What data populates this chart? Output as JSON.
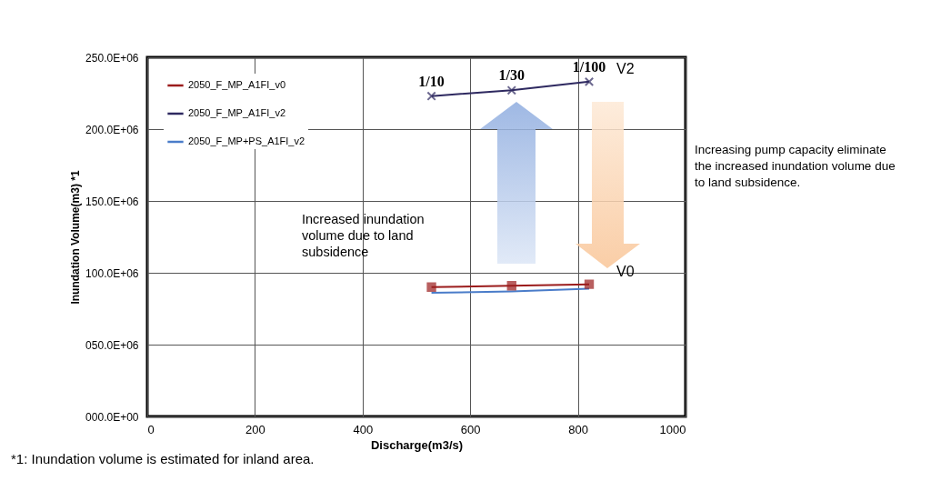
{
  "chart_data": {
    "type": "line",
    "xlabel": "Discharge(m3/s)",
    "ylabel": "Inundation Volume(m3) *1",
    "x": [
      528,
      677,
      821
    ],
    "series": [
      {
        "name": "2050_F_MP_A1FI_v0",
        "color": "#9b1c1c",
        "marker": "square",
        "values": [
          90000000,
          91000000,
          92000000
        ]
      },
      {
        "name": "2050_F_MP_A1FI_v2",
        "color": "#2e2960",
        "marker": "cross",
        "values": [
          223000000,
          227000000,
          233000000
        ]
      },
      {
        "name": "2050_F_MP+PS_A1FI_v2",
        "color": "#4a7cc9",
        "marker": "none",
        "values": [
          86000000,
          87000000,
          89000000
        ]
      }
    ],
    "xlim": [
      0,
      1000
    ],
    "xticks": [
      0,
      200,
      400,
      600,
      800,
      1000
    ],
    "ylim": [
      0,
      250000000
    ],
    "yticks": [
      {
        "value": 0,
        "label": "000.0E+00"
      },
      {
        "value": 50000000,
        "label": "050.0E+06"
      },
      {
        "value": 100000000,
        "label": "100.0E+06"
      },
      {
        "value": 150000000,
        "label": "150.0E+06"
      },
      {
        "value": 200000000,
        "label": "200.0E+06"
      },
      {
        "value": 250000000,
        "label": "250.0E+06"
      }
    ],
    "grid": true,
    "legend": "top left",
    "annotations": [
      {
        "text": "1/10",
        "x": 528,
        "y": 223000000
      },
      {
        "text": "1/30",
        "x": 677,
        "y": 227000000
      },
      {
        "text": "1/100",
        "x": 821,
        "y": 233000000
      },
      {
        "text": "V2",
        "x": 821,
        "y": 233000000
      },
      {
        "text": "V0",
        "x": 821,
        "y": 92000000
      },
      "Increased inundation volume due to land subsidence",
      "Increasing pump capacity eliminate the increased inundation volume due to land subsidence.",
      "*1: Inundation volume is estimated for inland area."
    ]
  }
}
